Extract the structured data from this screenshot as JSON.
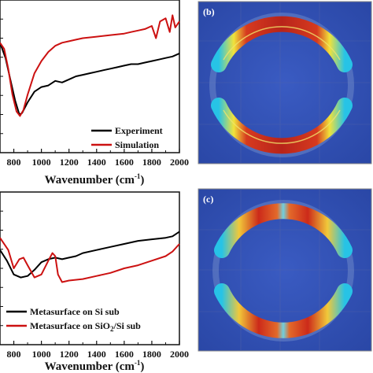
{
  "colors": {
    "experiment": "#000000",
    "simulation": "#cc1111",
    "map_background": "#2f4fb3",
    "map_grid": "#5566a8"
  },
  "chart_data": [
    {
      "type": "line",
      "panel": "top-left",
      "xlabel": "Wavenumber",
      "xlabel_unit": "(cm",
      "xlabel_unit_exp": "-1",
      "xlabel_unit_close": ")",
      "xlim": [
        700,
        2000
      ],
      "xticks": [
        "800",
        "1000",
        "1200",
        "1400",
        "1600",
        "1800",
        "2000"
      ],
      "ylim": [
        0,
        1
      ],
      "legend_position": "bottom-right",
      "series": [
        {
          "name": "Experiment",
          "color": "#000000",
          "x": [
            700,
            740,
            780,
            810,
            840,
            860,
            900,
            950,
            1000,
            1050,
            1100,
            1150,
            1200,
            1250,
            1300,
            1350,
            1400,
            1450,
            1500,
            1550,
            1600,
            1650,
            1700,
            1750,
            1800,
            1850,
            1900,
            1950,
            2000
          ],
          "y": [
            0.72,
            0.62,
            0.46,
            0.34,
            0.25,
            0.26,
            0.33,
            0.4,
            0.43,
            0.44,
            0.47,
            0.46,
            0.48,
            0.5,
            0.51,
            0.52,
            0.53,
            0.54,
            0.55,
            0.56,
            0.57,
            0.58,
            0.58,
            0.59,
            0.6,
            0.61,
            0.62,
            0.63,
            0.65
          ]
        },
        {
          "name": "Simulation",
          "color": "#cc1111",
          "x": [
            700,
            730,
            760,
            790,
            820,
            845,
            870,
            900,
            950,
            1000,
            1050,
            1100,
            1150,
            1200,
            1250,
            1300,
            1400,
            1500,
            1600,
            1650,
            1700,
            1750,
            1800,
            1830,
            1860,
            1900,
            1930,
            1950,
            1970,
            2000
          ],
          "y": [
            0.72,
            0.68,
            0.55,
            0.38,
            0.27,
            0.24,
            0.28,
            0.38,
            0.52,
            0.6,
            0.66,
            0.7,
            0.72,
            0.73,
            0.74,
            0.75,
            0.76,
            0.77,
            0.78,
            0.79,
            0.8,
            0.81,
            0.83,
            0.75,
            0.86,
            0.88,
            0.79,
            0.9,
            0.82,
            0.86
          ]
        }
      ]
    },
    {
      "type": "line",
      "panel": "bottom-left",
      "xlabel": "Wavenumber",
      "xlabel_unit": "(cm",
      "xlabel_unit_exp": "-1",
      "xlabel_unit_close": ")",
      "xlim": [
        700,
        2000
      ],
      "xticks": [
        "800",
        "1000",
        "1200",
        "1400",
        "1600",
        "1800",
        "2000"
      ],
      "ylim": [
        0,
        1
      ],
      "legend_position": "bottom-right",
      "series": [
        {
          "name": "Metasurface on Si sub",
          "name_parts": [
            "Metasurface on Si sub"
          ],
          "color": "#000000",
          "x": [
            700,
            750,
            800,
            850,
            900,
            950,
            1000,
            1050,
            1100,
            1150,
            1200,
            1250,
            1300,
            1400,
            1500,
            1600,
            1700,
            1800,
            1900,
            1950,
            2000
          ],
          "y": [
            0.62,
            0.55,
            0.46,
            0.44,
            0.45,
            0.49,
            0.54,
            0.56,
            0.57,
            0.56,
            0.57,
            0.58,
            0.6,
            0.62,
            0.64,
            0.66,
            0.68,
            0.69,
            0.7,
            0.71,
            0.74
          ]
        },
        {
          "name": "Metasurface on SiO2/Si sub",
          "name_parts": [
            "Metasurface on SiO",
            "2",
            "/Si sub"
          ],
          "color": "#cc1111",
          "x": [
            700,
            760,
            800,
            840,
            870,
            900,
            950,
            1000,
            1050,
            1080,
            1100,
            1120,
            1150,
            1200,
            1300,
            1400,
            1500,
            1600,
            1700,
            1800,
            1900,
            1950,
            2000
          ],
          "y": [
            0.7,
            0.62,
            0.5,
            0.56,
            0.57,
            0.52,
            0.44,
            0.46,
            0.55,
            0.6,
            0.58,
            0.46,
            0.41,
            0.42,
            0.43,
            0.45,
            0.47,
            0.5,
            0.52,
            0.55,
            0.58,
            0.61,
            0.66
          ]
        }
      ]
    },
    {
      "type": "heatmap",
      "panel": "top-right",
      "label": "(b)"
    },
    {
      "type": "heatmap",
      "panel": "bottom-right",
      "label": "(c)"
    }
  ]
}
